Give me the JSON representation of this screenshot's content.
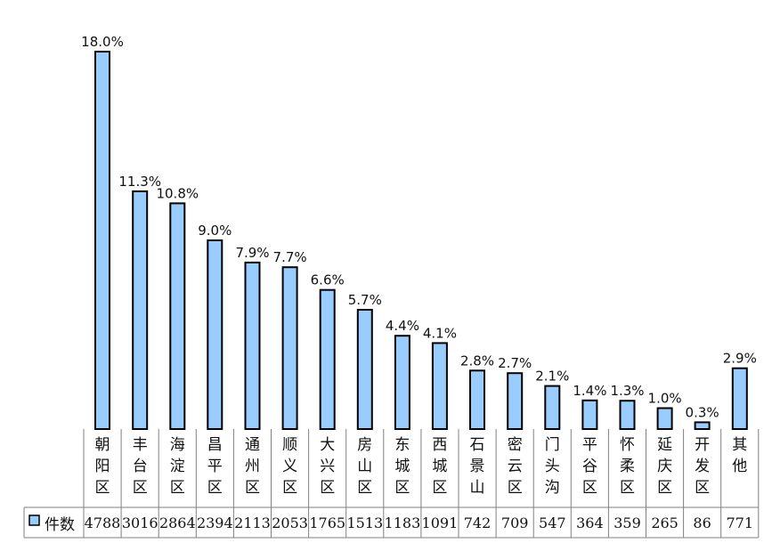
{
  "chart_data": {
    "type": "bar",
    "categories": [
      "朝阳区",
      "丰台区",
      "海淀区",
      "昌平区",
      "通州区",
      "顺义区",
      "大兴区",
      "房山区",
      "东城区",
      "西城区",
      "石景山",
      "密云区",
      "门头沟",
      "平谷区",
      "怀柔区",
      "延庆区",
      "开发区",
      "其他"
    ],
    "series": [
      {
        "name": "件数",
        "values": [
          4788,
          3016,
          2864,
          2394,
          2113,
          2053,
          1765,
          1513,
          1183,
          1091,
          742,
          709,
          547,
          364,
          359,
          265,
          86,
          771
        ],
        "labels": [
          "18.0%",
          "11.3%",
          "10.8%",
          "9.0%",
          "7.9%",
          "7.7%",
          "6.6%",
          "5.7%",
          "4.4%",
          "4.1%",
          "2.8%",
          "2.7%",
          "2.1%",
          "1.4%",
          "1.3%",
          "1.0%",
          "0.3%",
          "2.9%"
        ]
      }
    ],
    "ylim": [
      0,
      4788
    ],
    "grid": false,
    "legend_position": "table-left",
    "colors": {
      "bar_fill": "#99CCFF",
      "bar_stroke": "#000000",
      "table_line": "#808080"
    }
  }
}
